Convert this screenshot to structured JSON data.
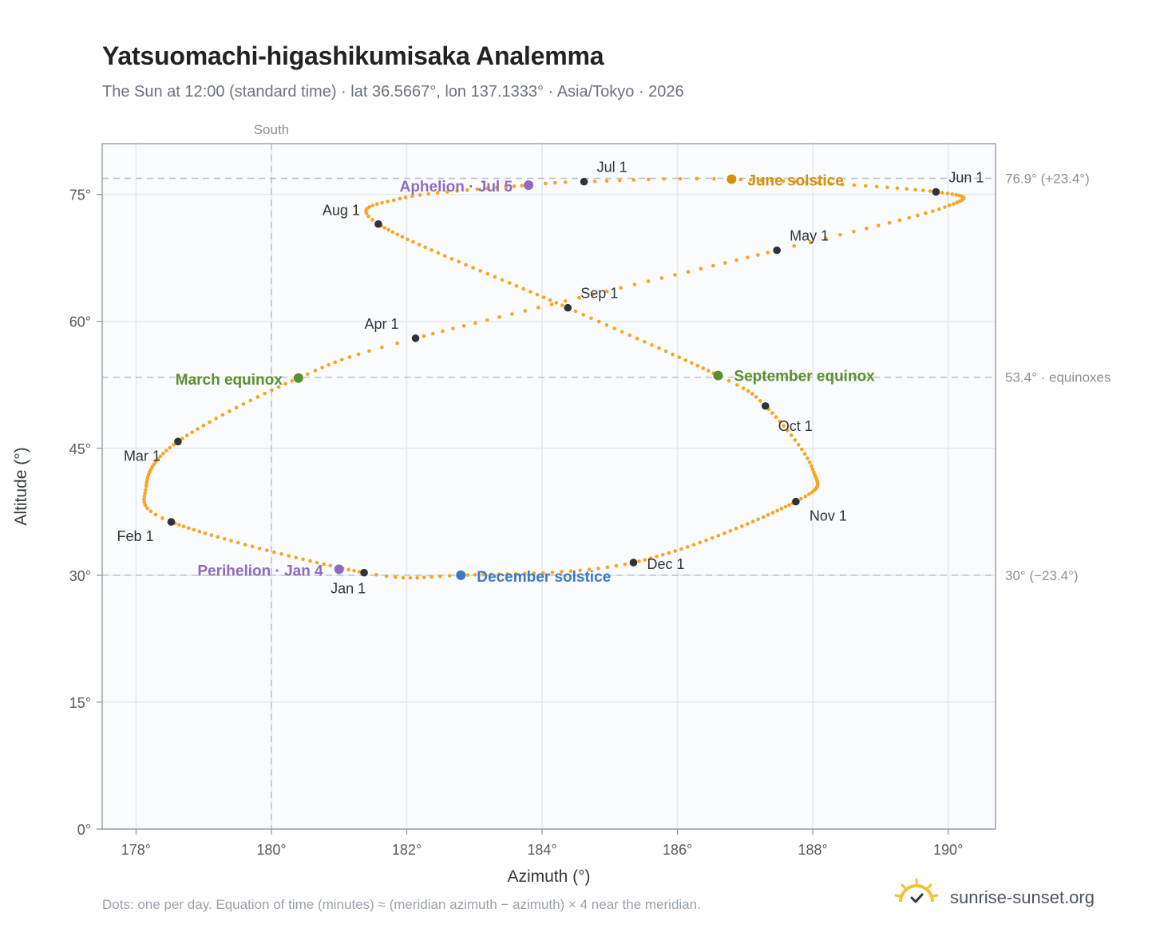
{
  "header": {
    "title": "Yatsuomachi-higashikumisaka Analemma",
    "subtitle": "The Sun at 12:00 (standard time) · lat 36.5667°, lon 137.1333° · Asia/Tokyo · 2026"
  },
  "footer": {
    "note": "Dots: one per day. Equation of time (minutes) ≈ (meridian azimuth − azimuth) × 4 near the meridian.",
    "brand": "sunrise-sunset.org"
  },
  "colors": {
    "curve": "#f5a623",
    "month_dot": "#2f3337",
    "june": "#d4900a",
    "equinox": "#5a8f2e",
    "december": "#3b7bc4",
    "apsis": "#8e6bbf",
    "brand": "#f2c230"
  },
  "chart_data": {
    "type": "scatter",
    "xlabel": "Azimuth (°)",
    "ylabel": "Altitude (°)",
    "xlim": [
      177.5,
      190.7
    ],
    "ylim": [
      0,
      81
    ],
    "xticks": [
      178,
      180,
      182,
      184,
      186,
      188,
      190
    ],
    "yticks": [
      0,
      15,
      30,
      45,
      60,
      75
    ],
    "x_tick_labels": [
      "178°",
      "180°",
      "182°",
      "184°",
      "186°",
      "188°",
      "190°"
    ],
    "y_tick_labels": [
      "0°",
      "15°",
      "30°",
      "45°",
      "60°",
      "75°"
    ],
    "grid": true,
    "meridian": {
      "x": 180,
      "label": "South"
    },
    "reference_lines": [
      {
        "y": 76.9,
        "label": "76.9° (+23.4°)"
      },
      {
        "y": 53.4,
        "label": "53.4° · equinoxes"
      },
      {
        "y": 30.0,
        "label": "30° (−23.4°)"
      }
    ],
    "months": [
      {
        "label": "Jan 1",
        "x": 181.37,
        "y": 30.3
      },
      {
        "label": "Feb 1",
        "x": 178.52,
        "y": 36.3
      },
      {
        "label": "Mar 1",
        "x": 178.62,
        "y": 45.8
      },
      {
        "label": "Apr 1",
        "x": 182.13,
        "y": 58.0
      },
      {
        "label": "May 1",
        "x": 187.47,
        "y": 68.4
      },
      {
        "label": "Jun 1",
        "x": 189.82,
        "y": 75.3
      },
      {
        "label": "Jul 1",
        "x": 184.62,
        "y": 76.5
      },
      {
        "label": "Aug 1",
        "x": 181.58,
        "y": 71.5
      },
      {
        "label": "Sep 1",
        "x": 184.38,
        "y": 61.6
      },
      {
        "label": "Oct 1",
        "x": 187.3,
        "y": 50.0
      },
      {
        "label": "Nov 1",
        "x": 187.75,
        "y": 38.7
      },
      {
        "label": "Dec 1",
        "x": 185.35,
        "y": 31.5
      }
    ],
    "events": [
      {
        "label": "June solstice",
        "x": 186.8,
        "y": 76.8,
        "color": "#d4900a"
      },
      {
        "label": "March equinox",
        "x": 180.4,
        "y": 53.3,
        "color": "#5a8f2e"
      },
      {
        "label": "September equinox",
        "x": 186.6,
        "y": 53.6,
        "color": "#5a8f2e"
      },
      {
        "label": "December solstice",
        "x": 182.8,
        "y": 30.0,
        "color": "#3b7bc4"
      },
      {
        "label": "Aphelion · Jul 5",
        "x": 183.8,
        "y": 76.1,
        "color": "#8e6bbf"
      },
      {
        "label": "Perihelion · Jan 4",
        "x": 181.0,
        "y": 30.7,
        "color": "#8e6bbf"
      }
    ],
    "curve_key_points": [
      {
        "day": 0,
        "x": 181.37,
        "y": 30.3
      },
      {
        "day": 31,
        "x": 178.52,
        "y": 36.3
      },
      {
        "day": 42,
        "x": 178.15,
        "y": 40.5
      },
      {
        "day": 59,
        "x": 178.62,
        "y": 45.8
      },
      {
        "day": 78,
        "x": 180.4,
        "y": 53.3
      },
      {
        "day": 90,
        "x": 182.13,
        "y": 58.0
      },
      {
        "day": 120,
        "x": 187.47,
        "y": 68.4
      },
      {
        "day": 135,
        "x": 189.95,
        "y": 73.5
      },
      {
        "day": 151,
        "x": 189.82,
        "y": 75.3
      },
      {
        "day": 171,
        "x": 186.8,
        "y": 76.8
      },
      {
        "day": 181,
        "x": 184.62,
        "y": 76.5
      },
      {
        "day": 185,
        "x": 183.8,
        "y": 76.1
      },
      {
        "day": 200,
        "x": 181.9,
        "y": 74.5
      },
      {
        "day": 212,
        "x": 181.58,
        "y": 71.5
      },
      {
        "day": 243,
        "x": 184.38,
        "y": 61.6
      },
      {
        "day": 265,
        "x": 186.6,
        "y": 53.6
      },
      {
        "day": 273,
        "x": 187.3,
        "y": 50.0
      },
      {
        "day": 288,
        "x": 188.0,
        "y": 42.5
      },
      {
        "day": 304,
        "x": 187.75,
        "y": 38.7
      },
      {
        "day": 334,
        "x": 185.35,
        "y": 31.5
      },
      {
        "day": 354,
        "x": 182.8,
        "y": 30.0
      },
      {
        "day": 365,
        "x": 181.37,
        "y": 30.3
      }
    ]
  }
}
